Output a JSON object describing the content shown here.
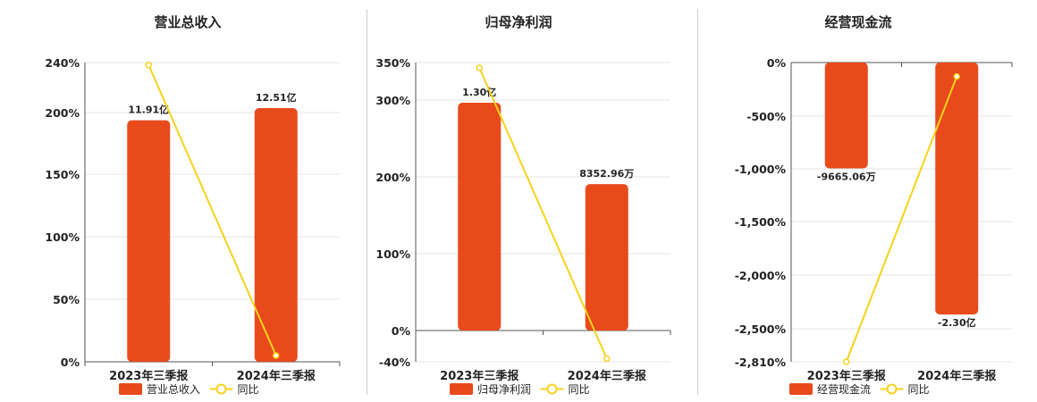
{
  "colors": {
    "bar": "#E84A1C",
    "line": "#F5D31B",
    "grid": "#e6e6e6",
    "axis": "#555555",
    "divider": "#cfcfcf"
  },
  "chart_data": [
    {
      "type": "bar",
      "title": "营业总收入",
      "categories": [
        "2023年三季报",
        "2024年三季报"
      ],
      "series": [
        {
          "name": "营业总收入",
          "type": "bar",
          "values": [
            11.91,
            12.51
          ],
          "labels": [
            "11.91亿",
            "12.51亿"
          ]
        },
        {
          "name": "同比",
          "type": "line",
          "values": [
            238,
            5
          ]
        }
      ],
      "y_ticks": [
        "240%",
        "200%",
        "150%",
        "100%",
        "50%",
        "0%"
      ],
      "ylim": [
        0,
        240
      ],
      "tick_values": [
        240,
        200,
        150,
        100,
        50,
        0
      ],
      "legend": "bottom"
    },
    {
      "type": "bar",
      "title": "归母净利润",
      "categories": [
        "2023年三季报",
        "2024年三季报"
      ],
      "series": [
        {
          "name": "归母净利润",
          "type": "bar",
          "values": [
            1.3,
            0.8353
          ],
          "labels": [
            "1.30亿",
            "8352.96万"
          ]
        },
        {
          "name": "同比",
          "type": "line",
          "values": [
            343,
            -36
          ]
        }
      ],
      "y_ticks": [
        "350%",
        "300%",
        "200%",
        "100%",
        "0%",
        "-40%"
      ],
      "ylim": [
        -40,
        350
      ],
      "tick_values": [
        350,
        300,
        200,
        100,
        0,
        -40
      ],
      "legend": "bottom"
    },
    {
      "type": "bar",
      "title": "经营现金流",
      "categories": [
        "2023年三季报",
        "2024年三季报"
      ],
      "series": [
        {
          "name": "经营现金流",
          "type": "bar",
          "values": [
            -0.9665,
            -2.3
          ],
          "labels": [
            "-9665.06万",
            "-2.30亿"
          ]
        },
        {
          "name": "同比",
          "type": "line",
          "values": [
            -2810,
            -130
          ]
        }
      ],
      "y_ticks": [
        "0%",
        "-500%",
        "-1,000%",
        "-1,500%",
        "-2,000%",
        "-2,500%",
        "-2,810%"
      ],
      "ylim": [
        -2810,
        0
      ],
      "tick_values": [
        0,
        -500,
        -1000,
        -1500,
        -2000,
        -2500,
        -2810
      ],
      "legend": "bottom"
    }
  ]
}
